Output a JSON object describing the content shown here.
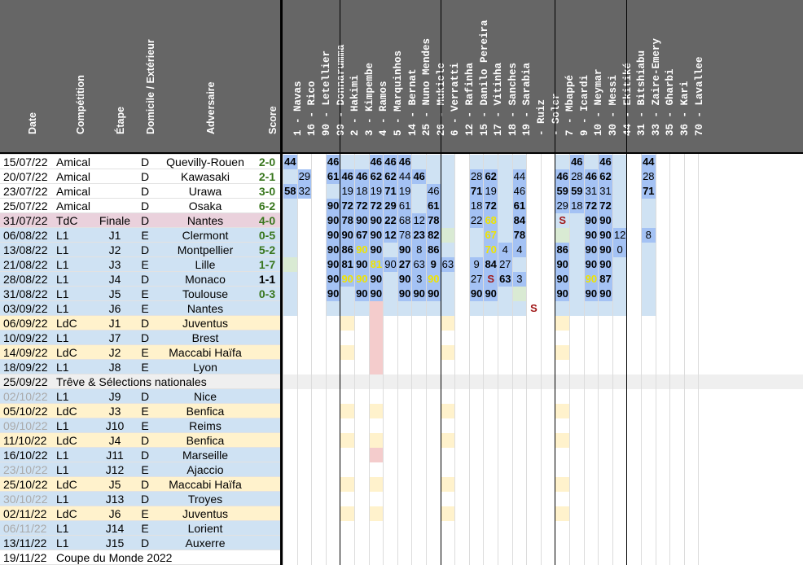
{
  "headers": [
    "Date",
    "Compétition",
    "Étape",
    "Domicile / Extérieur",
    "Adversaire",
    "Score"
  ],
  "players": [
    "1 - Navas",
    "16 - Rico",
    "90 - Letellier",
    "99 - Donnarumma",
    "2 - Hakimi",
    "3 - Kimpembe",
    "4 - Ramos",
    "5 - Marquinhos",
    "14 - Bernat",
    "25 - Nuno Mendes",
    "26 - Mukiele",
    "6 - Verratti",
    "12 - Rafinha",
    "15 - Danilo Pereira",
    "17 - Vitinha",
    "18 - Sanches",
    "19 - Sarabia",
    "- Ruiz",
    "- Soler",
    "7 - Mbappé",
    "9 - Icardi",
    "10 - Neymar",
    "30 - Messi",
    "44 - Ekitiké",
    "31 - Bitshiabu",
    "33 - Zaire-Emery",
    "35 - Gharbi",
    "36 - Kari",
    "70 - Lavallee"
  ],
  "matches": [
    {
      "date": "15/07/22",
      "comp": "Amical",
      "stage": "",
      "venue": "D",
      "opponent": "Quevilly-Rouen",
      "score": "2-0"
    },
    {
      "date": "20/07/22",
      "comp": "Amical",
      "stage": "",
      "venue": "D",
      "opponent": "Kawasaki",
      "score": "2-1"
    },
    {
      "date": "23/07/22",
      "comp": "Amical",
      "stage": "",
      "venue": "D",
      "opponent": "Urawa",
      "score": "3-0"
    },
    {
      "date": "25/07/22",
      "comp": "Amical",
      "stage": "",
      "venue": "D",
      "opponent": "Osaka",
      "score": "6-2"
    },
    {
      "date": "31/07/22",
      "comp": "TdC",
      "stage": "Finale",
      "venue": "D",
      "opponent": "Nantes",
      "score": "4-0"
    },
    {
      "date": "06/08/22",
      "comp": "L1",
      "stage": "J1",
      "venue": "E",
      "opponent": "Clermont",
      "score": "0-5"
    },
    {
      "date": "13/08/22",
      "comp": "L1",
      "stage": "J2",
      "venue": "D",
      "opponent": "Montpellier",
      "score": "5-2"
    },
    {
      "date": "21/08/22",
      "comp": "L1",
      "stage": "J3",
      "venue": "E",
      "opponent": "Lille",
      "score": "1-7"
    },
    {
      "date": "28/08/22",
      "comp": "L1",
      "stage": "J4",
      "venue": "D",
      "opponent": "Monaco",
      "score": "1-1"
    },
    {
      "date": "31/08/22",
      "comp": "L1",
      "stage": "J5",
      "venue": "E",
      "opponent": "Toulouse",
      "score": "0-3"
    },
    {
      "date": "03/09/22",
      "comp": "L1",
      "stage": "J6",
      "venue": "E",
      "opponent": "Nantes",
      "score": ""
    },
    {
      "date": "06/09/22",
      "comp": "LdC",
      "stage": "J1",
      "venue": "D",
      "opponent": "Juventus",
      "score": ""
    },
    {
      "date": "10/09/22",
      "comp": "L1",
      "stage": "J7",
      "venue": "D",
      "opponent": "Brest",
      "score": ""
    },
    {
      "date": "14/09/22",
      "comp": "LdC",
      "stage": "J2",
      "venue": "E",
      "opponent": "Maccabi Haïfa",
      "score": ""
    },
    {
      "date": "18/09/22",
      "comp": "L1",
      "stage": "J8",
      "venue": "E",
      "opponent": "Lyon",
      "score": ""
    },
    {
      "date": "25/09/22",
      "comp": "Trêve & Sélections nationales",
      "stage": "",
      "venue": "",
      "opponent": "",
      "score": ""
    },
    {
      "date": "02/10/22",
      "comp": "L1",
      "stage": "J9",
      "venue": "D",
      "opponent": "Nice",
      "score": ""
    },
    {
      "date": "05/10/22",
      "comp": "LdC",
      "stage": "J3",
      "venue": "E",
      "opponent": "Benfica",
      "score": ""
    },
    {
      "date": "09/10/22",
      "comp": "L1",
      "stage": "J10",
      "venue": "E",
      "opponent": "Reims",
      "score": ""
    },
    {
      "date": "11/10/22",
      "comp": "LdC",
      "stage": "J4",
      "venue": "D",
      "opponent": "Benfica",
      "score": ""
    },
    {
      "date": "16/10/22",
      "comp": "L1",
      "stage": "J11",
      "venue": "D",
      "opponent": "Marseille",
      "score": ""
    },
    {
      "date": "23/10/22",
      "comp": "L1",
      "stage": "J12",
      "venue": "E",
      "opponent": "Ajaccio",
      "score": ""
    },
    {
      "date": "25/10/22",
      "comp": "LdC",
      "stage": "J5",
      "venue": "D",
      "opponent": "Maccabi Haïfa",
      "score": ""
    },
    {
      "date": "30/10/22",
      "comp": "L1",
      "stage": "J13",
      "venue": "D",
      "opponent": "Troyes",
      "score": ""
    },
    {
      "date": "02/11/22",
      "comp": "LdC",
      "stage": "J6",
      "venue": "E",
      "opponent": "Juventus",
      "score": ""
    },
    {
      "date": "06/11/22",
      "comp": "L1",
      "stage": "J14",
      "venue": "E",
      "opponent": "Lorient",
      "score": ""
    },
    {
      "date": "13/11/22",
      "comp": "L1",
      "stage": "J15",
      "venue": "D",
      "opponent": "Auxerre",
      "score": ""
    },
    {
      "date": "19/11/22",
      "comp": "Coupe du Monde 2022",
      "stage": "",
      "venue": "",
      "opponent": "",
      "score": ""
    }
  ],
  "minutes": [
    [
      "44",
      "",
      "",
      "46",
      "",
      "",
      "46",
      "46",
      "46",
      "",
      "",
      "",
      "",
      "",
      "",
      "",
      "",
      "",
      "",
      "",
      "46",
      "",
      "46",
      "",
      "",
      "44",
      "",
      "",
      ""
    ],
    [
      "",
      "29",
      "",
      "61",
      "46",
      "46",
      "62",
      "62",
      "44",
      "46",
      "",
      "",
      "",
      "28",
      "62",
      "",
      "44",
      "",
      "",
      "46",
      "28",
      "46",
      "62",
      "",
      "",
      "28",
      "",
      "",
      ""
    ],
    [
      "58",
      "32",
      "",
      "",
      "19",
      "18",
      "19",
      "71",
      "19",
      "",
      "46",
      "",
      "",
      "71",
      "19",
      "",
      "46",
      "",
      "",
      "59",
      "59",
      "31",
      "31",
      "",
      "",
      "71",
      "",
      "",
      ""
    ],
    [
      "",
      "",
      "",
      "90",
      "72",
      "72",
      "72",
      "29",
      "61",
      "",
      "61",
      "",
      "",
      "18",
      "72",
      "",
      "61",
      "",
      "",
      "29",
      "18",
      "72",
      "72",
      "",
      "",
      "",
      "",
      "",
      ""
    ],
    [
      "",
      "",
      "",
      "90",
      "78",
      "90",
      "90",
      "22",
      "68",
      "12",
      "78",
      "",
      "",
      "22",
      "68",
      "",
      "84",
      "",
      "",
      "S",
      "",
      "90",
      "90",
      "",
      "",
      "",
      "",
      "",
      ""
    ],
    [
      "",
      "",
      "",
      "90",
      "90",
      "67",
      "90",
      "12",
      "78",
      "23",
      "82",
      "",
      "",
      "",
      "67",
      "",
      "78",
      "",
      "",
      "",
      "",
      "90",
      "90",
      "12",
      "",
      "8",
      "",
      "",
      ""
    ],
    [
      "",
      "",
      "",
      "90",
      "86",
      "90",
      "90",
      "",
      "90",
      "8",
      "86",
      "",
      "",
      "",
      "70",
      "4",
      "4",
      "",
      "",
      "86",
      "",
      "90",
      "90",
      "0",
      "",
      "",
      "",
      "",
      ""
    ],
    [
      "",
      "",
      "",
      "90",
      "81",
      "90",
      "81",
      "90",
      "27",
      "63",
      "9",
      "63",
      "",
      "9",
      "84",
      "27",
      "",
      "",
      "",
      "90",
      "",
      "90",
      "90",
      "",
      "",
      "",
      "",
      "",
      ""
    ],
    [
      "",
      "",
      "",
      "90",
      "90",
      "90",
      "90",
      "",
      "90",
      "3",
      "90",
      "",
      "",
      "27",
      "S",
      "63",
      "3",
      "",
      "",
      "90",
      "",
      "90",
      "87",
      "",
      "",
      "",
      "",
      "",
      ""
    ],
    [
      "",
      "",
      "",
      "90",
      "",
      "90",
      "90",
      "",
      "90",
      "90",
      "90",
      "",
      "",
      "90",
      "90",
      "",
      "",
      "",
      "",
      "90",
      "",
      "90",
      "90",
      "",
      "",
      "",
      "",
      "",
      ""
    ],
    [
      "",
      "",
      "",
      "",
      "",
      "",
      "",
      "",
      "",
      "",
      "",
      "",
      "",
      "",
      "",
      "",
      "",
      "S",
      "",
      "",
      "",
      "",
      "",
      "",
      "",
      "",
      "",
      "",
      ""
    ]
  ],
  "colors": {
    "header": "#666666",
    "played": "#a4c2f4",
    "squad": "#cfe2f3",
    "light_row": "#ffffff",
    "tdc_row": "#ead1dc",
    "l1_row": "#cfe2f3",
    "ldc_row": "#fff2cc",
    "break_row": "#efefef",
    "score_win": "#38761d",
    "yellow_card": "#f0e400",
    "suspended": "#a01818"
  }
}
